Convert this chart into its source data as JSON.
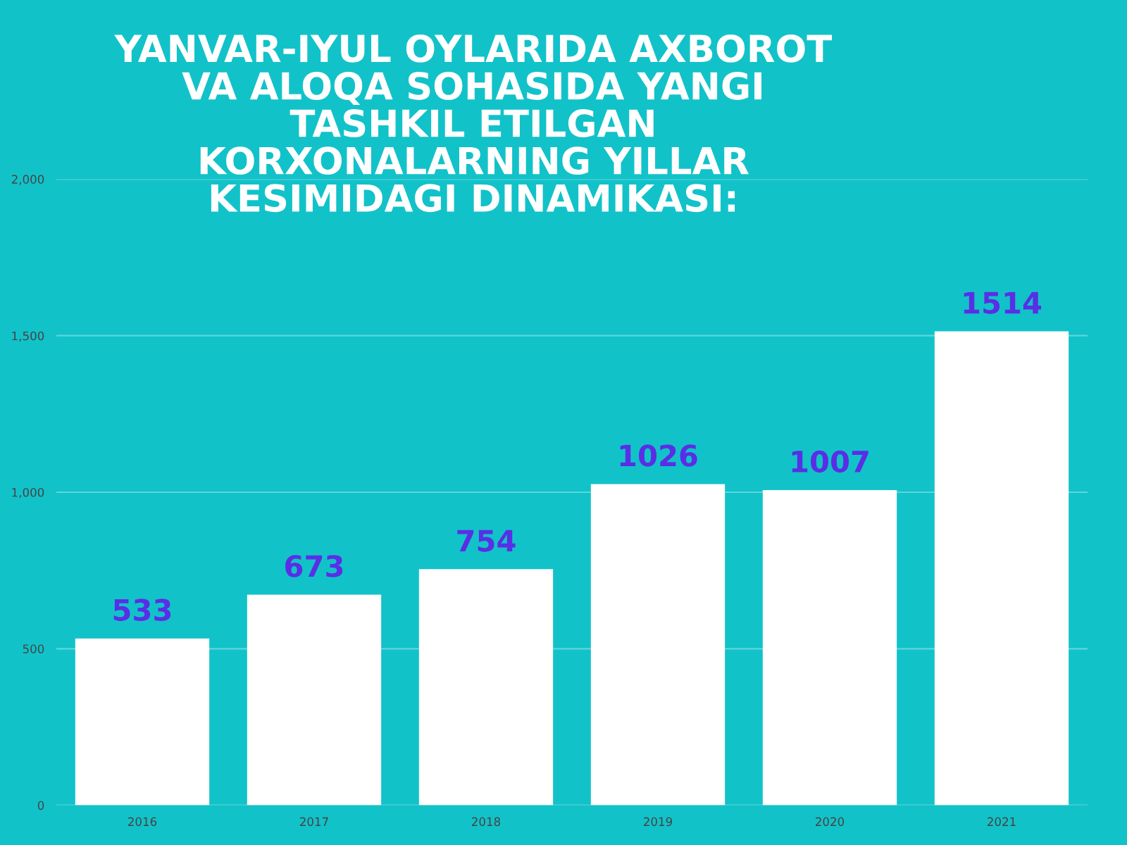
{
  "chart_data": {
    "type": "bar",
    "title": "YANVAR-IYUL OYLARIDA AXBOROT\nVA ALOQA SOHASIDA YANGI\nTASHKIL ETILGAN\nKORXONALARNING YILLAR\nKESIMIDAGI DINAMIKASI:",
    "categories": [
      "2016",
      "2017",
      "2018",
      "2019",
      "2020",
      "2021"
    ],
    "values": [
      533,
      673,
      754,
      1026,
      1007,
      1514
    ],
    "color": "#ffffff",
    "ylim": [
      0,
      2000
    ],
    "yticks": [
      0,
      {
        "value": 500,
        "label": "500"
      },
      {
        "value": 1000,
        "label": "1,000"
      },
      {
        "value": 1500,
        "label": "1,500"
      },
      {
        "value": 2000,
        "label": "2,000"
      }
    ],
    "grid": "y",
    "data_labels": true,
    "legend": false
  }
}
